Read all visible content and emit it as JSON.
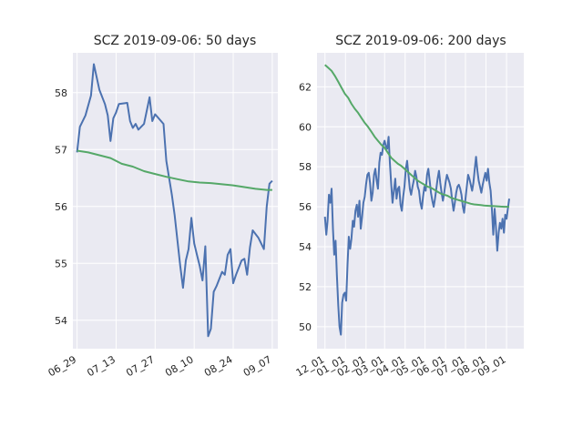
{
  "chart_data": [
    {
      "type": "line",
      "title": "SCZ 2019-09-06: 50 days",
      "xlabel": "",
      "ylabel": "",
      "x_tick_labels": [
        "06_29",
        "07_13",
        "07_27",
        "08_10",
        "08_24",
        "09_07"
      ],
      "x_tick_days": [
        0,
        14,
        28,
        42,
        56,
        70
      ],
      "x_range_days": [
        -1.5,
        72.0
      ],
      "y_ticks": [
        54,
        55,
        56,
        57,
        58
      ],
      "ylim": [
        53.5,
        58.7
      ],
      "grid": true,
      "series": [
        {
          "color": "#4C72B0",
          "points": [
            [
              0,
              56.95
            ],
            [
              1,
              57.4
            ],
            [
              3,
              57.6
            ],
            [
              5,
              57.95
            ],
            [
              6,
              58.5
            ],
            [
              8,
              58.05
            ],
            [
              10,
              57.8
            ],
            [
              11,
              57.6
            ],
            [
              12,
              57.15
            ],
            [
              13,
              57.55
            ],
            [
              14,
              57.65
            ],
            [
              15,
              57.8
            ],
            [
              18,
              57.82
            ],
            [
              19,
              57.5
            ],
            [
              20,
              57.38
            ],
            [
              21,
              57.45
            ],
            [
              22,
              57.35
            ],
            [
              24,
              57.45
            ],
            [
              26,
              57.92
            ],
            [
              27,
              57.5
            ],
            [
              28,
              57.62
            ],
            [
              31,
              57.45
            ],
            [
              32,
              56.8
            ],
            [
              34,
              56.2
            ],
            [
              35,
              55.85
            ],
            [
              36,
              55.4
            ],
            [
              37,
              54.95
            ],
            [
              38,
              54.57
            ],
            [
              39,
              55.05
            ],
            [
              40,
              55.25
            ],
            [
              41,
              55.8
            ],
            [
              42,
              55.35
            ],
            [
              43,
              55.15
            ],
            [
              44,
              54.95
            ],
            [
              45,
              54.7
            ],
            [
              46,
              55.3
            ],
            [
              47,
              53.72
            ],
            [
              48,
              53.85
            ],
            [
              49,
              54.5
            ],
            [
              50,
              54.6
            ],
            [
              52,
              54.85
            ],
            [
              53,
              54.8
            ],
            [
              54,
              55.15
            ],
            [
              55,
              55.25
            ],
            [
              56,
              54.65
            ],
            [
              57,
              54.8
            ],
            [
              59,
              55.05
            ],
            [
              60,
              55.08
            ],
            [
              61,
              54.8
            ],
            [
              62,
              55.28
            ],
            [
              63,
              55.58
            ],
            [
              65,
              55.45
            ],
            [
              67,
              55.25
            ],
            [
              68,
              56.0
            ],
            [
              69,
              56.4
            ],
            [
              70,
              56.45
            ]
          ]
        },
        {
          "color": "#55A868",
          "points": [
            [
              0,
              56.98
            ],
            [
              4,
              56.95
            ],
            [
              8,
              56.9
            ],
            [
              12,
              56.85
            ],
            [
              16,
              56.75
            ],
            [
              20,
              56.7
            ],
            [
              24,
              56.62
            ],
            [
              28,
              56.57
            ],
            [
              32,
              56.52
            ],
            [
              36,
              56.48
            ],
            [
              40,
              56.44
            ],
            [
              44,
              56.42
            ],
            [
              48,
              56.41
            ],
            [
              52,
              56.39
            ],
            [
              56,
              56.37
            ],
            [
              60,
              56.34
            ],
            [
              64,
              56.31
            ],
            [
              68,
              56.29
            ],
            [
              70,
              56.29
            ]
          ]
        }
      ]
    },
    {
      "type": "line",
      "title": "SCZ 2019-09-06: 200 days",
      "xlabel": "",
      "ylabel": "",
      "x_tick_labels": [
        "12_01",
        "01_01",
        "02_01",
        "03_01",
        "04_01",
        "05_01",
        "06_01",
        "07_01",
        "08_01",
        "09_01"
      ],
      "x_tick_days": [
        0,
        31,
        62,
        90,
        121,
        151,
        182,
        212,
        243,
        274
      ],
      "x_range_days": [
        -12.0,
        300.0
      ],
      "y_ticks": [
        50,
        52,
        54,
        56,
        58,
        60,
        62
      ],
      "ylim": [
        48.9,
        63.7
      ],
      "grid": true,
      "series": [
        {
          "color": "#4C72B0",
          "points": [
            [
              0,
              55.5
            ],
            [
              2,
              54.6
            ],
            [
              4,
              55.3
            ],
            [
              6,
              56.6
            ],
            [
              8,
              56.2
            ],
            [
              10,
              56.9
            ],
            [
              12,
              54.9
            ],
            [
              14,
              53.6
            ],
            [
              16,
              54.3
            ],
            [
              18,
              52.6
            ],
            [
              20,
              51.1
            ],
            [
              22,
              50.0
            ],
            [
              24,
              49.6
            ],
            [
              26,
              51.2
            ],
            [
              28,
              51.6
            ],
            [
              30,
              51.7
            ],
            [
              32,
              51.3
            ],
            [
              34,
              53.1
            ],
            [
              36,
              54.5
            ],
            [
              38,
              53.9
            ],
            [
              40,
              54.4
            ],
            [
              42,
              55.3
            ],
            [
              44,
              55.0
            ],
            [
              46,
              55.8
            ],
            [
              48,
              56.1
            ],
            [
              50,
              55.5
            ],
            [
              52,
              56.3
            ],
            [
              54,
              54.9
            ],
            [
              56,
              55.5
            ],
            [
              58,
              56.2
            ],
            [
              60,
              56.5
            ],
            [
              62,
              57.1
            ],
            [
              64,
              57.6
            ],
            [
              66,
              57.7
            ],
            [
              68,
              57.2
            ],
            [
              70,
              56.3
            ],
            [
              72,
              56.7
            ],
            [
              74,
              57.6
            ],
            [
              76,
              57.9
            ],
            [
              78,
              57.3
            ],
            [
              80,
              56.9
            ],
            [
              82,
              58.2
            ],
            [
              84,
              58.7
            ],
            [
              86,
              58.6
            ],
            [
              88,
              59.1
            ],
            [
              90,
              59.3
            ],
            [
              92,
              59.0
            ],
            [
              94,
              58.9
            ],
            [
              96,
              59.5
            ],
            [
              98,
              58.2
            ],
            [
              100,
              57.1
            ],
            [
              102,
              56.2
            ],
            [
              104,
              56.8
            ],
            [
              106,
              57.4
            ],
            [
              108,
              56.4
            ],
            [
              110,
              56.9
            ],
            [
              112,
              57.0
            ],
            [
              114,
              56.1
            ],
            [
              116,
              55.8
            ],
            [
              118,
              56.5
            ],
            [
              120,
              57.0
            ],
            [
              122,
              57.9
            ],
            [
              124,
              58.3
            ],
            [
              126,
              57.6
            ],
            [
              128,
              56.9
            ],
            [
              130,
              56.6
            ],
            [
              132,
              57.0
            ],
            [
              134,
              57.3
            ],
            [
              136,
              57.8
            ],
            [
              138,
              57.5
            ],
            [
              140,
              57.0
            ],
            [
              142,
              56.8
            ],
            [
              144,
              56.2
            ],
            [
              146,
              55.9
            ],
            [
              148,
              56.5
            ],
            [
              150,
              57.0
            ],
            [
              152,
              56.8
            ],
            [
              154,
              57.6
            ],
            [
              156,
              57.9
            ],
            [
              158,
              57.3
            ],
            [
              160,
              56.7
            ],
            [
              162,
              56.3
            ],
            [
              164,
              56.0
            ],
            [
              166,
              56.4
            ],
            [
              168,
              56.9
            ],
            [
              170,
              57.4
            ],
            [
              172,
              57.8
            ],
            [
              174,
              57.2
            ],
            [
              176,
              56.7
            ],
            [
              178,
              56.3
            ],
            [
              180,
              56.7
            ],
            [
              182,
              57.2
            ],
            [
              184,
              57.6
            ],
            [
              186,
              57.4
            ],
            [
              188,
              57.2
            ],
            [
              190,
              56.9
            ],
            [
              192,
              56.3
            ],
            [
              194,
              55.8
            ],
            [
              196,
              56.2
            ],
            [
              198,
              56.7
            ],
            [
              200,
              57.0
            ],
            [
              202,
              57.1
            ],
            [
              204,
              56.9
            ],
            [
              206,
              56.6
            ],
            [
              208,
              56.0
            ],
            [
              210,
              55.7
            ],
            [
              212,
              56.4
            ],
            [
              214,
              57.0
            ],
            [
              216,
              57.6
            ],
            [
              218,
              57.4
            ],
            [
              220,
              57.1
            ],
            [
              222,
              56.8
            ],
            [
              224,
              57.2
            ],
            [
              226,
              57.9
            ],
            [
              228,
              58.5
            ],
            [
              230,
              57.8
            ],
            [
              232,
              57.3
            ],
            [
              234,
              57.0
            ],
            [
              236,
              56.7
            ],
            [
              238,
              57.1
            ],
            [
              240,
              57.4
            ],
            [
              242,
              57.7
            ],
            [
              244,
              57.3
            ],
            [
              246,
              57.9
            ],
            [
              248,
              57.2
            ],
            [
              250,
              56.8
            ],
            [
              252,
              55.8
            ],
            [
              254,
              54.6
            ],
            [
              256,
              55.9
            ],
            [
              258,
              55.0
            ],
            [
              260,
              53.8
            ],
            [
              262,
              54.7
            ],
            [
              264,
              55.2
            ],
            [
              266,
              54.9
            ],
            [
              268,
              55.4
            ],
            [
              270,
              54.7
            ],
            [
              272,
              55.6
            ],
            [
              274,
              55.4
            ],
            [
              276,
              55.9
            ],
            [
              278,
              56.4
            ]
          ]
        },
        {
          "color": "#55A868",
          "points": [
            [
              0,
              63.1
            ],
            [
              5,
              62.95
            ],
            [
              10,
              62.8
            ],
            [
              15,
              62.55
            ],
            [
              20,
              62.25
            ],
            [
              25,
              61.95
            ],
            [
              30,
              61.65
            ],
            [
              35,
              61.45
            ],
            [
              40,
              61.15
            ],
            [
              45,
              60.9
            ],
            [
              50,
              60.7
            ],
            [
              55,
              60.45
            ],
            [
              60,
              60.2
            ],
            [
              65,
              60.0
            ],
            [
              70,
              59.75
            ],
            [
              75,
              59.5
            ],
            [
              80,
              59.3
            ],
            [
              85,
              59.1
            ],
            [
              90,
              58.95
            ],
            [
              95,
              58.7
            ],
            [
              100,
              58.45
            ],
            [
              105,
              58.3
            ],
            [
              110,
              58.15
            ],
            [
              115,
              58.05
            ],
            [
              120,
              57.9
            ],
            [
              125,
              57.75
            ],
            [
              130,
              57.6
            ],
            [
              135,
              57.45
            ],
            [
              140,
              57.3
            ],
            [
              145,
              57.2
            ],
            [
              150,
              57.1
            ],
            [
              155,
              57.0
            ],
            [
              160,
              56.95
            ],
            [
              165,
              56.85
            ],
            [
              170,
              56.75
            ],
            [
              175,
              56.65
            ],
            [
              180,
              56.6
            ],
            [
              185,
              56.55
            ],
            [
              190,
              56.45
            ],
            [
              195,
              56.4
            ],
            [
              200,
              56.35
            ],
            [
              205,
              56.3
            ],
            [
              210,
              56.25
            ],
            [
              215,
              56.2
            ],
            [
              220,
              56.15
            ],
            [
              225,
              56.12
            ],
            [
              230,
              56.1
            ],
            [
              235,
              56.08
            ],
            [
              240,
              56.06
            ],
            [
              245,
              56.05
            ],
            [
              250,
              56.04
            ],
            [
              255,
              56.03
            ],
            [
              260,
              56.02
            ],
            [
              265,
              56.01
            ],
            [
              270,
              56.0
            ],
            [
              275,
              56.0
            ],
            [
              278,
              56.0
            ]
          ]
        }
      ]
    }
  ]
}
